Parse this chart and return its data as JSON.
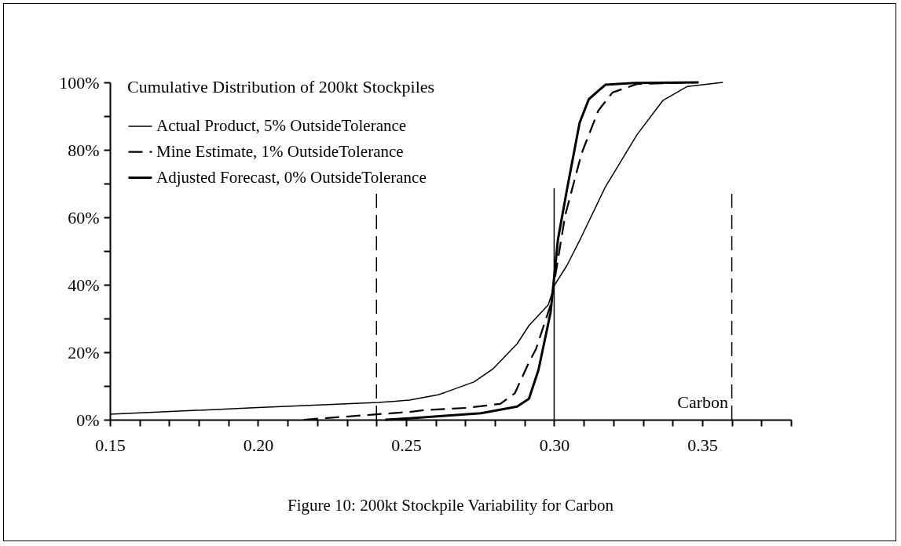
{
  "chart_data": {
    "type": "line",
    "title": "Cumulative Distribution of 200kt Stockpiles",
    "annotations": [
      "Carbon",
      "Figure 10: 200kt Stockpile Variability for Carbon"
    ],
    "xlim": [
      0.15,
      0.38
    ],
    "ylim": [
      0,
      100
    ],
    "xticks": [
      0.15,
      {
        "value": 0.16,
        "label": null
      },
      {
        "value": 0.17,
        "label": null
      },
      {
        "value": 0.18,
        "label": null
      },
      {
        "value": 0.19,
        "label": null
      },
      {
        "value": 0.2,
        "label": "0.20"
      },
      {
        "value": 0.21,
        "label": null
      },
      {
        "value": 0.22,
        "label": null
      },
      {
        "value": 0.23,
        "label": null
      },
      {
        "value": 0.24,
        "label": null
      },
      0.25,
      {
        "value": 0.26,
        "label": null
      },
      {
        "value": 0.27,
        "label": null
      },
      {
        "value": 0.28,
        "label": null
      },
      {
        "value": 0.29,
        "label": null
      },
      {
        "value": 0.3,
        "label": "0.30"
      },
      {
        "value": 0.31,
        "label": null
      },
      {
        "value": 0.32,
        "label": null
      },
      {
        "value": 0.33,
        "label": null
      },
      {
        "value": 0.34,
        "label": null
      },
      0.35,
      {
        "value": 0.36,
        "label": null
      },
      {
        "value": 0.37,
        "label": null
      },
      {
        "value": 0.38,
        "label": null
      }
    ],
    "yticks": [
      {
        "value": 0,
        "label": "0%"
      },
      {
        "value": 10,
        "label": null
      },
      {
        "value": 20,
        "label": "20%"
      },
      {
        "value": 30,
        "label": null
      },
      {
        "value": 40,
        "label": "40%"
      },
      {
        "value": 50,
        "label": null
      },
      {
        "value": 60,
        "label": "60%"
      },
      {
        "value": 70,
        "label": null
      },
      {
        "value": 80,
        "label": "80%"
      },
      {
        "value": 90,
        "label": null
      },
      {
        "value": 100,
        "label": "100%"
      }
    ],
    "grid": false,
    "legend": "top left",
    "marker": "none",
    "ref_lines": [
      {
        "axis": "x",
        "value": 0.24,
        "line_style": "dashed"
      },
      {
        "axis": "x",
        "value": 0.3,
        "line_style": "solid"
      },
      {
        "axis": "x",
        "value": 0.36,
        "line_style": "dashed"
      }
    ],
    "series": [
      {
        "name": "Actual Product, 5% OutsideTolerance",
        "color": "#000000",
        "line_style": "solid",
        "x": [
          0.15,
          0.2,
          0.2407,
          0.2511,
          0.2608,
          0.2632,
          0.2729,
          0.2794,
          0.2875,
          0.2915,
          0.298,
          0.3002,
          0.3043,
          0.3091,
          0.3173,
          0.328,
          0.3367,
          0.345,
          0.357
        ],
        "values": [
          1.6,
          3.6,
          5.1,
          5.8,
          7.4,
          8.1,
          11.2,
          15.1,
          22.5,
          27.9,
          34,
          40,
          45.7,
          54,
          69,
          84.5,
          94.6,
          98.8,
          100
        ]
      },
      {
        "name": "Mine Estimate, 1% OutsideTolerance",
        "color": "#000000",
        "line_style": "dashed",
        "x": [
          0.2155,
          0.2511,
          0.256,
          0.2705,
          0.2818,
          0.2867,
          0.2915,
          0.2939,
          0.2988,
          0.3037,
          0.3093,
          0.3149,
          0.3197,
          0.328,
          0.348
        ],
        "values": [
          0,
          2.3,
          2.8,
          3.5,
          4.7,
          7.8,
          17,
          21,
          34,
          60.5,
          79,
          91.6,
          97,
          99.5,
          100
        ]
      },
      {
        "name": "Adjusted Forecast, 0% OutsideTolerance",
        "color": "#000000",
        "line_style": "solid",
        "x": [
          0.243,
          0.2511,
          0.2753,
          0.2875,
          0.2915,
          0.2947,
          0.2988,
          0.3013,
          0.3045,
          0.3086,
          0.3117,
          0.3173,
          0.327,
          0.3488
        ],
        "values": [
          0,
          0.4,
          1.9,
          3.9,
          6.2,
          14.7,
          31.8,
          53.5,
          69,
          88,
          95,
          99.3,
          99.8,
          100
        ]
      }
    ]
  }
}
